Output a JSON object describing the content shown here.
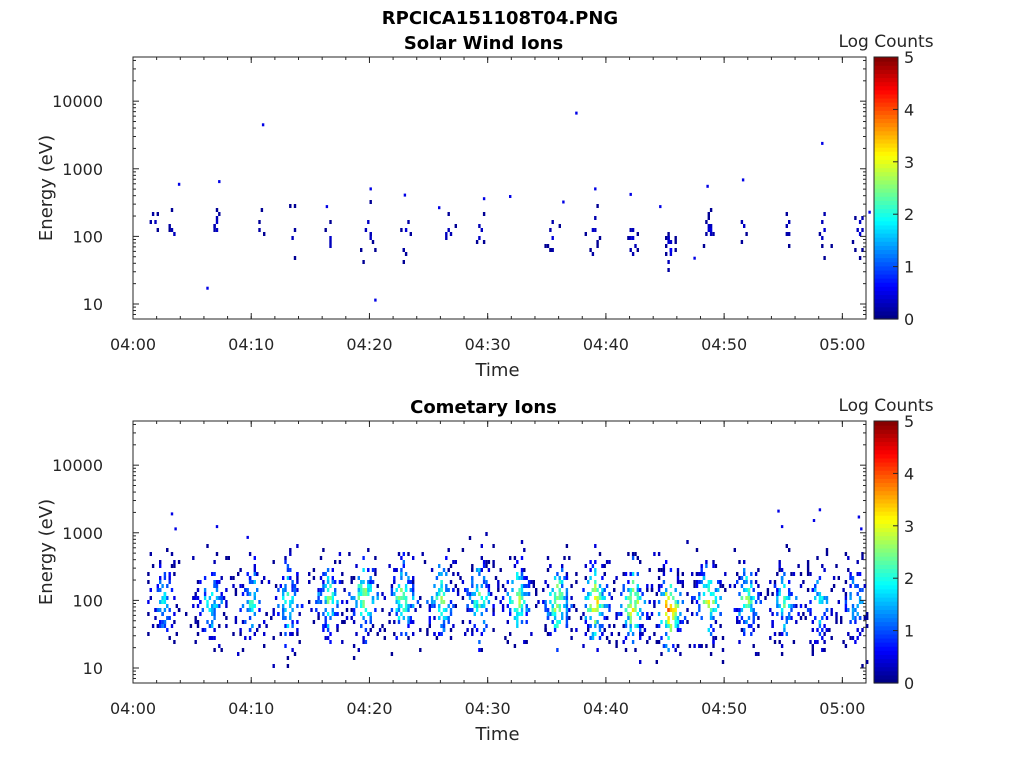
{
  "figure_title": "RPCICA151108T04.PNG",
  "chart_data": [
    {
      "type": "heatmap",
      "title": "Solar Wind Ions",
      "xlabel": "Time",
      "ylabel": "Energy (eV)",
      "x_range": [
        "04:00",
        "05:02"
      ],
      "x_ticks": [
        "04:00",
        "04:10",
        "04:20",
        "04:30",
        "04:40",
        "04:50",
        "05:00"
      ],
      "y_scale": "log",
      "y_range": [
        6,
        45000
      ],
      "y_ticks": [
        "10",
        "100",
        "1000",
        "10000"
      ],
      "colorbar": {
        "label": "Log Counts",
        "min": 0,
        "max": 5,
        "ticks": [
          "0",
          "1",
          "2",
          "3",
          "4",
          "5"
        ],
        "colormap": "jet"
      },
      "cell_minutes": 0.2,
      "clusters": [
        {
          "t": 1.7,
          "e": 170,
          "n": 5,
          "dt": 0.3,
          "de": 0.15,
          "v": 0.08,
          "sp": 0.02
        },
        {
          "t": 3.4,
          "e": 150,
          "n": 5,
          "dt": 0.4,
          "de": 0.2,
          "v": 0.08,
          "sp": 0.02
        },
        {
          "t": 7.0,
          "e": 160,
          "n": 8,
          "dt": 0.3,
          "de": 0.15,
          "v": 0.1,
          "sp": 0.02
        },
        {
          "t": 10.8,
          "e": 150,
          "n": 4,
          "dt": 0.3,
          "de": 0.12,
          "v": 0.08,
          "sp": 0.02
        },
        {
          "t": 13.3,
          "e": 110,
          "n": 5,
          "dt": 0.4,
          "de": 0.2,
          "v": 0.08,
          "sp": 0.02
        },
        {
          "t": 16.5,
          "e": 100,
          "n": 5,
          "dt": 0.4,
          "de": 0.15,
          "v": 0.08,
          "sp": 0.02
        },
        {
          "t": 19.8,
          "e": 130,
          "n": 10,
          "dt": 0.5,
          "de": 0.25,
          "v": 0.1,
          "sp": 0.02
        },
        {
          "t": 23.0,
          "e": 120,
          "n": 8,
          "dt": 0.5,
          "de": 0.2,
          "v": 0.1,
          "sp": 0.02
        },
        {
          "t": 26.5,
          "e": 120,
          "n": 6,
          "dt": 0.5,
          "de": 0.2,
          "v": 0.08,
          "sp": 0.02
        },
        {
          "t": 29.3,
          "e": 110,
          "n": 6,
          "dt": 0.3,
          "de": 0.2,
          "v": 0.08,
          "sp": 0.02
        },
        {
          "t": 35.5,
          "e": 110,
          "n": 8,
          "dt": 0.5,
          "de": 0.2,
          "v": 0.1,
          "sp": 0.02
        },
        {
          "t": 38.8,
          "e": 120,
          "n": 10,
          "dt": 0.5,
          "de": 0.2,
          "v": 0.1,
          "sp": 0.02
        },
        {
          "t": 42.2,
          "e": 90,
          "n": 10,
          "dt": 0.4,
          "de": 0.2,
          "v": 0.1,
          "sp": 0.02
        },
        {
          "t": 45.3,
          "e": 70,
          "n": 18,
          "dt": 0.4,
          "de": 0.15,
          "v": 0.15,
          "sp": 0.05
        },
        {
          "t": 48.7,
          "e": 130,
          "n": 12,
          "dt": 0.3,
          "de": 0.2,
          "v": 0.1,
          "sp": 0.02
        },
        {
          "t": 51.5,
          "e": 160,
          "n": 4,
          "dt": 0.3,
          "de": 0.2,
          "v": 0.08,
          "sp": 0.02
        },
        {
          "t": 55.3,
          "e": 140,
          "n": 6,
          "dt": 0.6,
          "de": 0.15,
          "v": 0.08,
          "sp": 0.02
        },
        {
          "t": 58.4,
          "e": 120,
          "n": 8,
          "dt": 0.5,
          "de": 0.2,
          "v": 0.1,
          "sp": 0.02
        },
        {
          "t": 61.3,
          "e": 150,
          "n": 10,
          "dt": 0.5,
          "de": 0.2,
          "v": 0.1,
          "sp": 0.02
        }
      ],
      "points": [
        {
          "t": 3.8,
          "e": 620,
          "v": 0.1
        },
        {
          "t": 7.2,
          "e": 680,
          "v": 0.1
        },
        {
          "t": 6.2,
          "e": 18,
          "v": 0.1
        },
        {
          "t": 10.9,
          "e": 4700,
          "v": 0.1
        },
        {
          "t": 20.0,
          "e": 530,
          "v": 0.1
        },
        {
          "t": 20.4,
          "e": 12,
          "v": 0.1
        },
        {
          "t": 22.9,
          "e": 430,
          "v": 0.1
        },
        {
          "t": 29.6,
          "e": 380,
          "v": 0.1
        },
        {
          "t": 31.8,
          "e": 410,
          "v": 0.1
        },
        {
          "t": 36.3,
          "e": 340,
          "v": 0.1
        },
        {
          "t": 37.4,
          "e": 7000,
          "v": 0.1
        },
        {
          "t": 39.0,
          "e": 530,
          "v": 0.1
        },
        {
          "t": 42.0,
          "e": 440,
          "v": 0.1
        },
        {
          "t": 48.5,
          "e": 580,
          "v": 0.1
        },
        {
          "t": 51.5,
          "e": 720,
          "v": 0.1
        },
        {
          "t": 58.2,
          "e": 2500,
          "v": 0.1
        },
        {
          "t": 16.3,
          "e": 290,
          "v": 0.1
        },
        {
          "t": 25.8,
          "e": 280,
          "v": 0.1
        },
        {
          "t": 44.5,
          "e": 290,
          "v": 0.1
        },
        {
          "t": 47.4,
          "e": 50,
          "v": 0.1
        },
        {
          "t": 62.2,
          "e": 240,
          "v": 0.1
        }
      ]
    },
    {
      "type": "heatmap",
      "title": "Cometary Ions",
      "xlabel": "Time",
      "ylabel": "Energy (eV)",
      "x_range": [
        "04:00",
        "05:02"
      ],
      "x_ticks": [
        "04:00",
        "04:10",
        "04:20",
        "04:30",
        "04:40",
        "04:50",
        "05:00"
      ],
      "y_scale": "log",
      "y_range": [
        6,
        45000
      ],
      "y_ticks": [
        "10",
        "100",
        "1000",
        "10000"
      ],
      "colorbar": {
        "label": "Log Counts",
        "min": 0,
        "max": 5,
        "ticks": [
          "0",
          "1",
          "2",
          "3",
          "4",
          "5"
        ],
        "colormap": "jet"
      },
      "cell_minutes": 0.2,
      "clusters": [
        {
          "t": 2.5,
          "e": 110,
          "n": 80,
          "dt": 1.2,
          "de": 0.35,
          "v": 0.35,
          "sp": 0.2
        },
        {
          "t": 6.5,
          "e": 100,
          "n": 90,
          "dt": 1.2,
          "de": 0.35,
          "v": 0.4,
          "sp": 0.25
        },
        {
          "t": 10.0,
          "e": 100,
          "n": 80,
          "dt": 1.2,
          "de": 0.35,
          "v": 0.4,
          "sp": 0.3
        },
        {
          "t": 13.0,
          "e": 100,
          "n": 90,
          "dt": 1.2,
          "de": 0.35,
          "v": 0.45,
          "sp": 0.3
        },
        {
          "t": 16.5,
          "e": 110,
          "n": 90,
          "dt": 1.2,
          "de": 0.35,
          "v": 0.5,
          "sp": 0.3
        },
        {
          "t": 19.5,
          "e": 120,
          "n": 100,
          "dt": 1.2,
          "de": 0.35,
          "v": 0.6,
          "sp": 0.3
        },
        {
          "t": 22.7,
          "e": 110,
          "n": 100,
          "dt": 1.2,
          "de": 0.35,
          "v": 0.55,
          "sp": 0.3
        },
        {
          "t": 26.0,
          "e": 110,
          "n": 100,
          "dt": 1.2,
          "de": 0.35,
          "v": 0.5,
          "sp": 0.3
        },
        {
          "t": 29.2,
          "e": 110,
          "n": 100,
          "dt": 1.2,
          "de": 0.35,
          "v": 0.5,
          "sp": 0.3
        },
        {
          "t": 32.5,
          "e": 110,
          "n": 100,
          "dt": 1.2,
          "de": 0.35,
          "v": 0.55,
          "sp": 0.3
        },
        {
          "t": 35.8,
          "e": 100,
          "n": 110,
          "dt": 1.2,
          "de": 0.35,
          "v": 0.6,
          "sp": 0.3
        },
        {
          "t": 39.0,
          "e": 100,
          "n": 110,
          "dt": 1.2,
          "de": 0.35,
          "v": 0.65,
          "sp": 0.3
        },
        {
          "t": 42.2,
          "e": 90,
          "n": 110,
          "dt": 1.2,
          "de": 0.35,
          "v": 0.65,
          "sp": 0.3
        },
        {
          "t": 45.3,
          "e": 80,
          "n": 110,
          "dt": 1.2,
          "de": 0.35,
          "v": 0.8,
          "sp": 0.3
        },
        {
          "t": 48.6,
          "e": 110,
          "n": 100,
          "dt": 1.2,
          "de": 0.35,
          "v": 0.6,
          "sp": 0.3
        },
        {
          "t": 51.8,
          "e": 110,
          "n": 90,
          "dt": 1.2,
          "de": 0.35,
          "v": 0.5,
          "sp": 0.3
        },
        {
          "t": 55.0,
          "e": 100,
          "n": 90,
          "dt": 1.2,
          "de": 0.35,
          "v": 0.45,
          "sp": 0.3
        },
        {
          "t": 58.0,
          "e": 100,
          "n": 80,
          "dt": 1.2,
          "de": 0.35,
          "v": 0.4,
          "sp": 0.25
        },
        {
          "t": 61.0,
          "e": 100,
          "n": 70,
          "dt": 1.0,
          "de": 0.35,
          "v": 0.35,
          "sp": 0.25
        }
      ],
      "points": [
        {
          "t": 3.2,
          "e": 2000,
          "v": 0.1
        },
        {
          "t": 3.5,
          "e": 1200,
          "v": 0.1
        },
        {
          "t": 7.0,
          "e": 1300,
          "v": 0.1
        },
        {
          "t": 9.6,
          "e": 900,
          "v": 0.1
        },
        {
          "t": 54.5,
          "e": 2200,
          "v": 0.1
        },
        {
          "t": 54.8,
          "e": 1300,
          "v": 0.1
        },
        {
          "t": 58.0,
          "e": 2300,
          "v": 0.1
        },
        {
          "t": 57.5,
          "e": 1600,
          "v": 0.1
        },
        {
          "t": 61.3,
          "e": 1800,
          "v": 0.1
        },
        {
          "t": 61.5,
          "e": 1200,
          "v": 0.1
        }
      ]
    }
  ]
}
